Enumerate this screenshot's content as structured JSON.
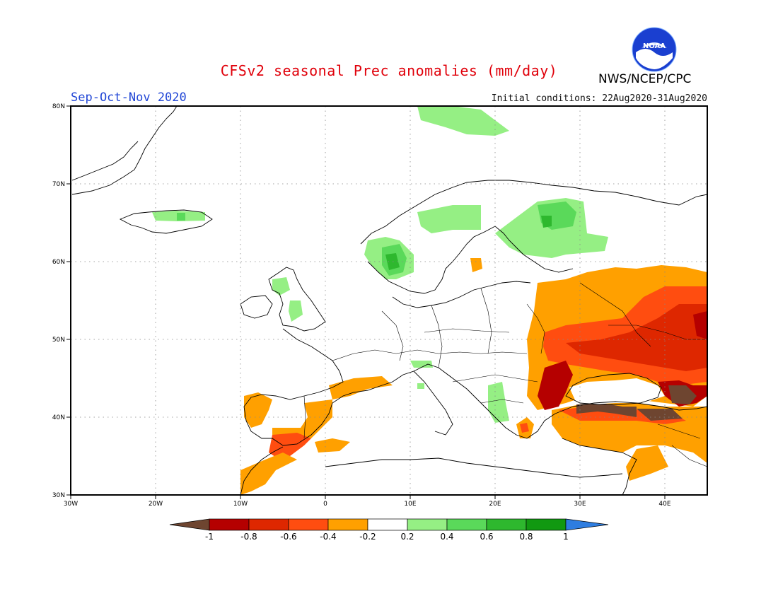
{
  "header": {
    "title": "CFSv2 seasonal Prec anomalies (mm/day)",
    "season": "Sep-Oct-Nov 2020",
    "initial_conditions": "Initial conditions: 22Aug2020-31Aug2020",
    "agency": "NWS/NCEP/CPC",
    "logo_text": "NOAA"
  },
  "map": {
    "lon_range": [
      -30,
      45
    ],
    "lat_range": [
      30,
      80
    ],
    "lon_ticks": [
      "30W",
      "20W",
      "10W",
      "0",
      "10E",
      "20E",
      "30E",
      "40E"
    ],
    "lat_ticks": [
      "80N",
      "70N",
      "60N",
      "50N",
      "40N",
      "30N"
    ],
    "grid": true
  },
  "colorbar": {
    "labels": [
      "-1",
      "-0.8",
      "-0.6",
      "-0.4",
      "-0.2",
      "0.2",
      "0.4",
      "0.6",
      "0.8",
      "1"
    ],
    "colors": {
      "below_min": "#6e4530",
      "m1_m08": "#b50000",
      "m08_m06": "#de2700",
      "m06_m04": "#ff4d10",
      "m04_m02": "#ffa000",
      "m02_02": "#ffffff",
      "p02_04": "#95ef84",
      "p04_06": "#5ad95a",
      "p06_08": "#2eb82e",
      "p08_1": "#119911",
      "above_max": "#2e7de0"
    }
  }
}
